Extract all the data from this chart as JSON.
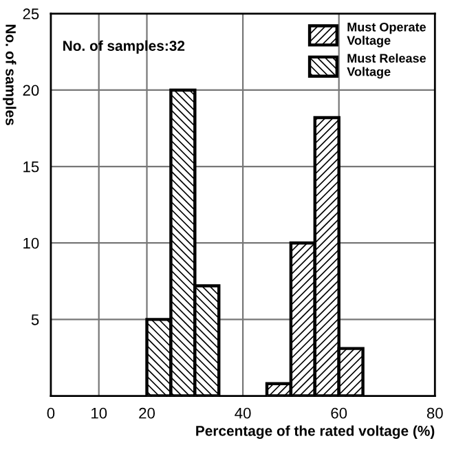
{
  "chart_data": {
    "type": "bar",
    "xlabel": "Percentage of the rated voltage (%)",
    "ylabel": "No. of samples",
    "annotations": [
      "No. of samples:32"
    ],
    "series": [
      {
        "name": "Must Operate Voltage",
        "color": "#000000",
        "x": [
          47.5,
          52.5,
          57.5,
          62.5
        ],
        "values": [
          0.8,
          10,
          18.2,
          3.1
        ]
      },
      {
        "name": "Must Release Voltage",
        "color": "#000000",
        "x": [
          22.5,
          27.5,
          32.5
        ],
        "values": [
          5,
          20,
          7.2
        ]
      }
    ],
    "xlim": [
      0,
      80
    ],
    "xticks": [
      0,
      10,
      20,
      40,
      60,
      80
    ],
    "ylim": [
      0,
      25
    ],
    "yticks": [
      5,
      10,
      15,
      20,
      25
    ],
    "grid": true,
    "legend": "top right"
  }
}
